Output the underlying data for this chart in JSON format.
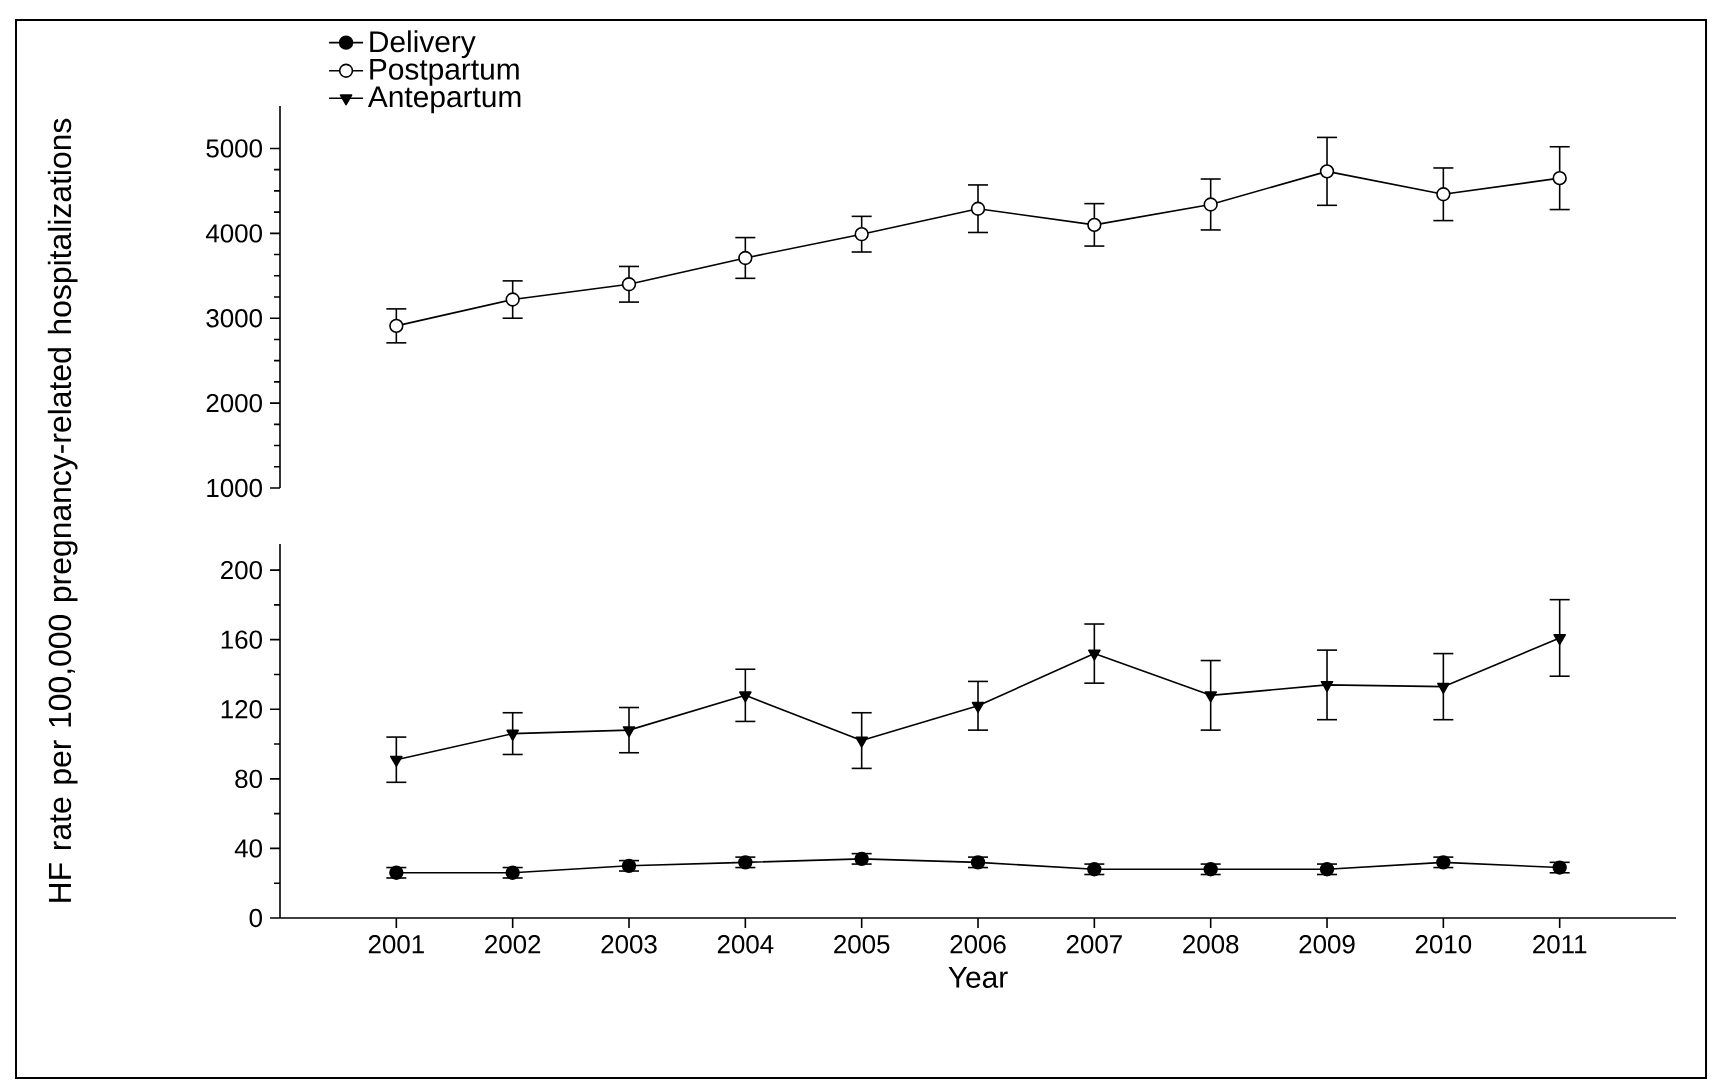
{
  "chart_data": [
    {
      "type": "line",
      "ylabel": "HF rate per 100,000 pregnancy-related hospitalizations",
      "x": [
        2001,
        2002,
        2003,
        2004,
        2005,
        2006,
        2007,
        2008,
        2009,
        2010,
        2011
      ],
      "ylim": [
        1000,
        5500
      ],
      "yticks": [
        1000,
        2000,
        3000,
        4000,
        5000
      ],
      "tick_labels": "y",
      "legend": "top left",
      "grid": false,
      "series": [
        {
          "name": "Postpartum",
          "color": "#000000",
          "marker": "circle",
          "values": [
            2910,
            3220,
            3400,
            3710,
            3990,
            4290,
            4100,
            4340,
            4730,
            4460,
            4650
          ],
          "errors": [
            200,
            220,
            210,
            240,
            210,
            280,
            250,
            300,
            400,
            310,
            370
          ]
        }
      ]
    },
    {
      "type": "line",
      "xlabel": "Year",
      "x": [
        2001,
        2002,
        2003,
        2004,
        2005,
        2006,
        2007,
        2008,
        2009,
        2010,
        2011
      ],
      "xlim": [
        2000,
        2012
      ],
      "xticks": [
        2001,
        2002,
        2003,
        2004,
        2005,
        2006,
        2007,
        2008,
        2009,
        2010,
        2011
      ],
      "ylim": [
        0,
        215
      ],
      "yticks": [
        0,
        40,
        80,
        120,
        160,
        200
      ],
      "legend": false,
      "grid": false,
      "series": [
        {
          "name": "Delivery",
          "color": "#000000",
          "marker": "circle",
          "values": [
            26,
            26,
            30,
            32,
            34,
            32,
            28,
            28,
            28,
            32,
            29
          ],
          "errors": [
            3,
            3,
            3,
            3,
            3,
            3,
            3,
            3,
            3,
            3,
            3
          ]
        },
        {
          "name": "Antepartum",
          "color": "#000000",
          "marker": "triangle",
          "values": [
            91,
            106,
            108,
            128,
            102,
            122,
            152,
            128,
            134,
            133,
            161
          ],
          "errors": [
            13,
            12,
            13,
            15,
            16,
            14,
            17,
            20,
            20,
            19,
            22
          ]
        }
      ]
    }
  ]
}
